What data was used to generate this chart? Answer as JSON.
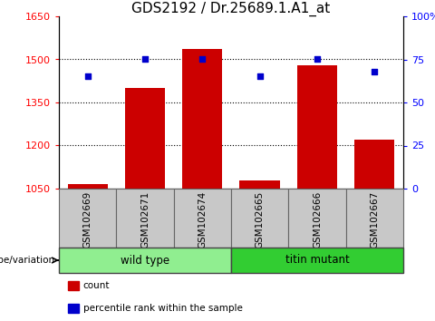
{
  "title": "GDS2192 / Dr.25689.1.A1_at",
  "categories": [
    "GSM102669",
    "GSM102671",
    "GSM102674",
    "GSM102665",
    "GSM102666",
    "GSM102667"
  ],
  "counts": [
    1065,
    1400,
    1535,
    1080,
    1480,
    1220
  ],
  "percentiles": [
    65,
    75,
    75,
    65,
    75,
    68
  ],
  "bar_color": "#CC0000",
  "marker_color": "#0000CC",
  "ylim_left": [
    1050,
    1650
  ],
  "ylim_right": [
    0,
    100
  ],
  "yticks_left": [
    1050,
    1200,
    1350,
    1500,
    1650
  ],
  "yticks_right": [
    0,
    25,
    50,
    75,
    100
  ],
  "ytick_labels_right": [
    "0",
    "25",
    "50",
    "75",
    "100%"
  ],
  "group_labels": [
    "wild type",
    "titin mutant"
  ],
  "group_colors": [
    "#90EE90",
    "#32CD32"
  ],
  "group_label_text": "genotype/variation",
  "legend_labels": [
    "count",
    "percentile rank within the sample"
  ],
  "legend_colors": [
    "#CC0000",
    "#0000CC"
  ],
  "title_fontsize": 11,
  "tick_fontsize": 8,
  "bar_width": 0.7
}
